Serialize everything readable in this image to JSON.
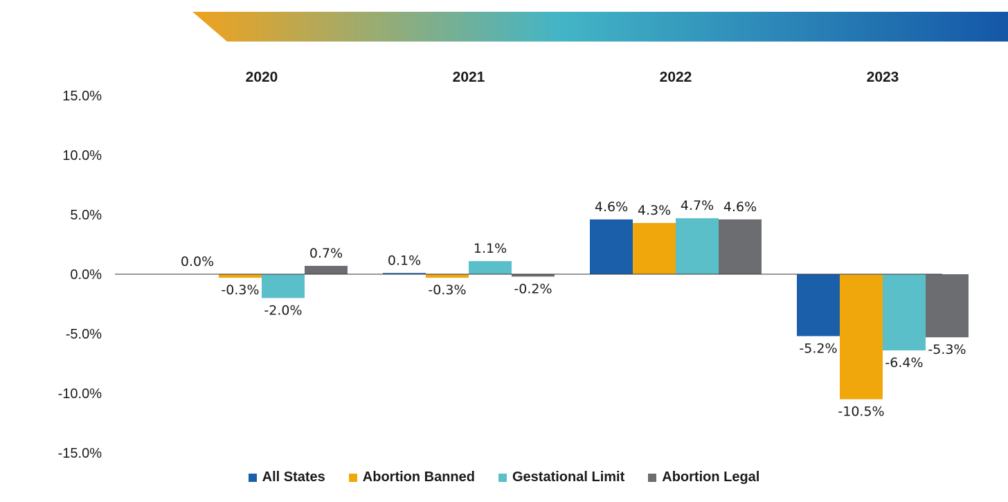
{
  "chart_data": {
    "type": "bar",
    "categories": [
      "2020",
      "2021",
      "2022",
      "2023"
    ],
    "ylim": [
      -15,
      15
    ],
    "yticks": [
      15,
      10,
      5,
      0,
      -5,
      -10,
      -15
    ],
    "ytick_labels": [
      "15.0%",
      "10.0%",
      "5.0%",
      "0.0%",
      "-5.0%",
      "-10.0%",
      "-15.0%"
    ],
    "grid": false,
    "legend_position": "bottom",
    "series": [
      {
        "name": "All States",
        "color": "#1b5faa",
        "values": [
          0.0,
          0.1,
          4.6,
          -5.2
        ],
        "labels": [
          "0.0%",
          "0.1%",
          "4.6%",
          "-5.2%"
        ]
      },
      {
        "name": "Abortion Banned",
        "color": "#f0a70c",
        "values": [
          -0.3,
          -0.3,
          4.3,
          -10.5
        ],
        "labels": [
          "-0.3%",
          "-0.3%",
          "4.3%",
          "-10.5%"
        ]
      },
      {
        "name": "Gestational Limit",
        "color": "#5bbfca",
        "values": [
          -2.0,
          1.1,
          4.7,
          -6.4
        ],
        "labels": [
          "-2.0%",
          "1.1%",
          "4.7%",
          "-6.4%"
        ]
      },
      {
        "name": "Abortion Legal",
        "color": "#6c6d70",
        "values": [
          0.7,
          -0.2,
          4.6,
          -5.3
        ],
        "labels": [
          "0.7%",
          "-0.2%",
          "4.6%",
          "-5.3%"
        ]
      }
    ]
  },
  "banner": {
    "colors": [
      "#f0a21e",
      "#43b5c6",
      "#1457a8"
    ]
  }
}
